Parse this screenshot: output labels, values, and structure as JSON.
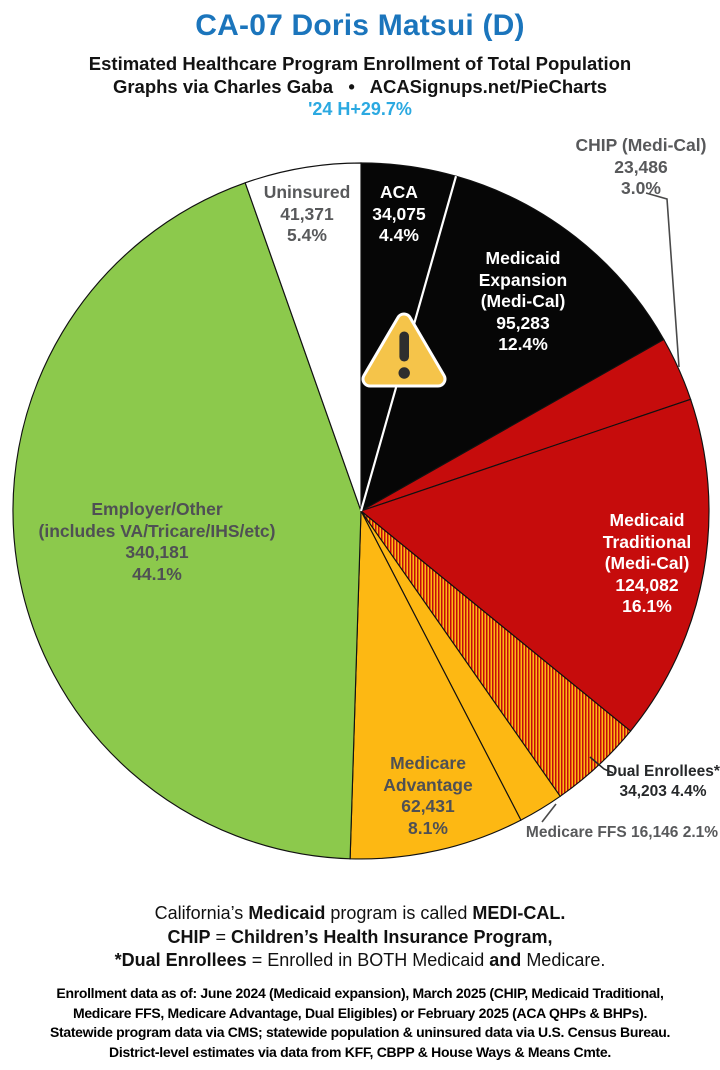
{
  "header": {
    "title": "CA-07 Doris Matsui (D)",
    "subtitle": "Estimated Healthcare Program Enrollment of Total Population",
    "byline": "Graphs via Charles Gaba   •   ACASignups.net/PieCharts",
    "growth_note": "'24 H+29.7%",
    "title_color": "#1B75BC",
    "growth_note_color": "#2BA9E1"
  },
  "chart_data": {
    "type": "pie",
    "title": "Estimated Healthcare Program Enrollment of Total Population",
    "district": "CA-07",
    "representative": "Doris Matsui (D)",
    "direction": "clockwise",
    "pie": {
      "center": [
        361,
        511
      ],
      "radius": 348,
      "start_angle_deg": 0
    },
    "hatch_colors": [
      "#C60C0C",
      "#FDB813"
    ],
    "slices": [
      {
        "id": "aca",
        "name": "ACA",
        "value": 34075,
        "pct": 4.4,
        "color": "#060606",
        "divider_after": true,
        "label_lines": [
          "ACA",
          "34,075",
          "4.4%"
        ]
      },
      {
        "id": "medicaid-expansion",
        "name": "Medicaid Expansion (Medi-Cal)",
        "value": 95283,
        "pct": 12.4,
        "color": "#060606",
        "label_lines": [
          "Medicaid",
          "Expansion",
          "(Medi-Cal)",
          "95,283",
          "12.4%"
        ]
      },
      {
        "id": "chip",
        "name": "CHIP (Medi-Cal)",
        "value": 23486,
        "pct": 3.0,
        "color": "#C60C0C",
        "label_lines": [
          "CHIP (Medi-Cal)",
          "23,486",
          "3.0%"
        ]
      },
      {
        "id": "medicaid-traditional",
        "name": "Medicaid Traditional (Medi-Cal)",
        "value": 124082,
        "pct": 16.1,
        "color": "#C60C0C",
        "label_lines": [
          "Medicaid",
          "Traditional",
          "(Medi-Cal)",
          "124,082",
          "16.1%"
        ]
      },
      {
        "id": "dual-enrollees",
        "name": "Dual Enrollees*",
        "value": 34203,
        "pct": 4.4,
        "color": "hatch",
        "label_lines": [
          "Dual Enrollees*",
          "34,203 4.4%"
        ]
      },
      {
        "id": "medicare-ffs",
        "name": "Medicare FFS",
        "value": 16146,
        "pct": 2.1,
        "color": "#FDB813",
        "label_lines": [
          "Medicare FFS 16,146 2.1%"
        ]
      },
      {
        "id": "medicare-advantage",
        "name": "Medicare Advantage",
        "value": 62431,
        "pct": 8.1,
        "color": "#FDB813",
        "label_lines": [
          "Medicare",
          "Advantage",
          "62,431",
          "8.1%"
        ]
      },
      {
        "id": "employer-other",
        "name": "Employer/Other (includes VA/Tricare/IHS/etc)",
        "value": 340181,
        "pct": 44.1,
        "color": "#8CC94C",
        "label_lines": [
          "Employer/Other",
          "(includes VA/Tricare/IHS/etc)",
          "340,181",
          "44.1%"
        ]
      },
      {
        "id": "uninsured",
        "name": "Uninsured",
        "value": 41371,
        "pct": 5.4,
        "color": "#FFFFFF",
        "label_lines": [
          "Uninsured",
          "41,371",
          "5.4%"
        ]
      }
    ],
    "warning_icon": "exclamation-triangle",
    "warning_icon_color": "#F5C44A"
  },
  "legend_notes": {
    "lines": [
      [
        [
          "California’s ",
          false
        ],
        [
          "Medicaid",
          true
        ],
        [
          " program is called ",
          false
        ],
        [
          "MEDI-CAL.",
          true
        ]
      ],
      [
        [
          "CHIP",
          true
        ],
        [
          " = ",
          false
        ],
        [
          "Children’s Health Insurance Program,",
          true
        ]
      ],
      [
        [
          "*Dual Enrollees",
          true
        ],
        [
          " = Enrolled in BOTH Medicaid ",
          false
        ],
        [
          "and",
          true
        ],
        [
          " Medicare.",
          false
        ]
      ]
    ]
  },
  "source_notes": [
    "Enrollment data as of: June 2024 (Medicaid expansion), March 2025 (CHIP, Medicaid Traditional,",
    "Medicare FFS, Medicare Advantage, Dual Eligibles) or February 2025 (ACA QHPs & BHPs).",
    "Statewide program data via CMS; statewide population & uninsured data via U.S. Census Bureau.",
    "District-level estimates via data from KFF, CBPP & House Ways & Means Cmte."
  ]
}
